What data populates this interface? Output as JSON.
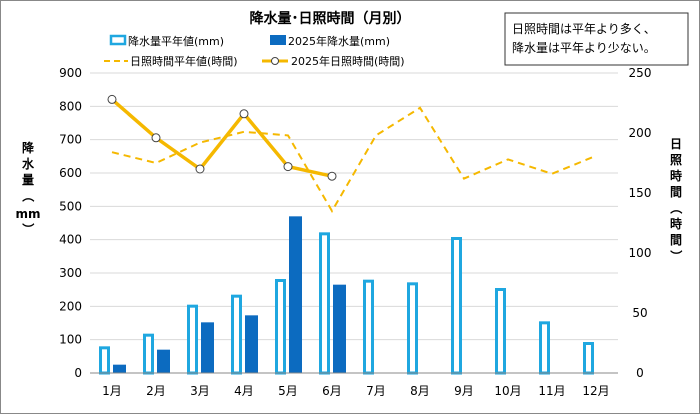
{
  "chart_data": {
    "type": "bar",
    "title": "降水量･日照時間（月別）",
    "categories": [
      "1月",
      "2月",
      "3月",
      "4月",
      "5月",
      "6月",
      "7月",
      "8月",
      "9月",
      "10月",
      "11月",
      "12月"
    ],
    "y_left": {
      "label_chars": [
        "降",
        "水",
        "量",
        "（",
        "mm",
        "）"
      ],
      "ylim": [
        0,
        900
      ],
      "ticks": [
        "0",
        "100",
        "200",
        "300",
        "400",
        "500",
        "600",
        "700",
        "800",
        "900"
      ]
    },
    "y_right": {
      "label_chars": [
        "日",
        "照",
        "時",
        "間",
        "（",
        "時",
        "間",
        "）"
      ],
      "ylim": [
        0,
        250
      ],
      "ticks": [
        "0",
        "50",
        "100",
        "150",
        "200",
        "250"
      ]
    },
    "series": [
      {
        "name": "降水量平年値(mm)",
        "kind": "bar",
        "axis": "left",
        "style": "outline",
        "values": [
          80,
          118,
          205,
          235,
          282,
          422,
          280,
          272,
          408,
          255,
          155,
          93
        ]
      },
      {
        "name": "2025年降水量(mm)",
        "kind": "bar",
        "axis": "left",
        "style": "filled",
        "values": [
          25,
          70,
          152,
          173,
          470,
          265,
          null,
          null,
          null,
          null,
          null,
          null
        ]
      },
      {
        "name": "日照時間平年値(時間)",
        "kind": "line",
        "axis": "right",
        "style": "dashed",
        "values": [
          184,
          175,
          192,
          201,
          198,
          135,
          198,
          221,
          162,
          178,
          166,
          181
        ]
      },
      {
        "name": "2025年日照時間(時間)",
        "kind": "line",
        "axis": "right",
        "style": "solid-markers",
        "values": [
          228,
          196,
          170,
          216,
          172,
          164,
          null,
          null,
          null,
          null,
          null,
          null
        ]
      }
    ],
    "legend_position": "top",
    "annotation_lines": [
      "日照時間は平年より多く、",
      "降水量は平年より少ない。"
    ],
    "colors": {
      "normal_bar": "#1fa7e0",
      "bar_2025": "#0c6bc0",
      "normal_line": "#f5b800",
      "line_2025": "#f5b800"
    }
  }
}
